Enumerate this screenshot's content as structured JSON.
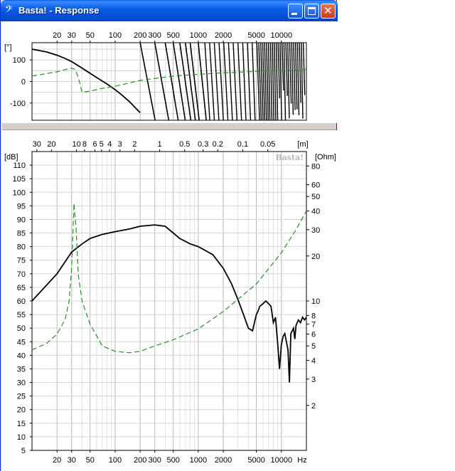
{
  "window": {
    "title": "Basta! - Response",
    "icon": "bass-clef-icon",
    "buttons": [
      "minimize",
      "maximize",
      "close"
    ],
    "title_color": "#ffffff",
    "titlebar_color": "#0b5fe5"
  },
  "chart_data": [
    {
      "type": "line",
      "name": "phase",
      "xscale": "log",
      "xlim": [
        10,
        20000
      ],
      "ylim": [
        -180,
        180
      ],
      "xticks": [
        "20",
        "30",
        "50",
        "100",
        "200",
        "300",
        "500",
        "1000",
        "2000",
        "5000",
        "10000"
      ],
      "xtick_values": [
        20,
        30,
        50,
        100,
        200,
        300,
        500,
        1000,
        2000,
        5000,
        10000
      ],
      "yunit": "[°]",
      "yticks": [
        "100",
        "0",
        "-100"
      ],
      "ytick_values": [
        100,
        0,
        -100
      ],
      "grid": true,
      "series": [
        {
          "style": "solid",
          "color": "#000000",
          "note_points": "unwrapped phase",
          "x": [
            10,
            15,
            20,
            25,
            30,
            40,
            50,
            60,
            80,
            100,
            120,
            150,
            200
          ],
          "y": [
            150,
            137,
            122,
            107,
            92,
            62,
            38,
            18,
            -12,
            -38,
            -62,
            -95,
            -145
          ],
          "wrapped_branch": {
            "x": [
              200,
              300,
              400,
              500,
              600,
              700,
              800,
              1000
            ],
            "start_y": [
              180,
              180,
              180,
              180,
              180,
              180,
              180,
              180
            ]
          }
        },
        {
          "style": "dashed",
          "color": "#2e8b2e",
          "x": [
            10,
            20,
            25,
            30,
            33,
            36,
            40,
            50,
            70,
            100,
            200,
            500,
            1000,
            2000,
            5000,
            10000,
            20000
          ],
          "y": [
            25,
            45,
            55,
            62,
            55,
            20,
            -50,
            -45,
            -32,
            -22,
            5,
            25,
            33,
            40,
            47,
            52,
            57
          ]
        }
      ]
    },
    {
      "type": "line",
      "name": "response",
      "xscale": "log",
      "xlim": [
        10,
        20000
      ],
      "ylim": [
        5,
        115
      ],
      "xticks": [
        "20",
        "30",
        "50",
        "100",
        "200",
        "300",
        "500",
        "1000",
        "2000",
        "5000",
        "10000"
      ],
      "xtick_values": [
        20,
        30,
        50,
        100,
        200,
        300,
        500,
        1000,
        2000,
        5000,
        10000
      ],
      "x_unit": "Hz",
      "ylabel_left": "[dB]",
      "yticks_left": [
        "110",
        "105",
        "100",
        "95",
        "90",
        "85",
        "80",
        "75",
        "70",
        "65",
        "60",
        "55",
        "50",
        "45",
        "40",
        "35",
        "30",
        "25",
        "20",
        "15",
        "10",
        "5"
      ],
      "ytick_values_left": [
        110,
        105,
        100,
        95,
        90,
        85,
        80,
        75,
        70,
        65,
        60,
        55,
        50,
        45,
        40,
        35,
        30,
        25,
        20,
        15,
        10,
        5
      ],
      "ylabel_right": "[Ohm]",
      "yticks_right": [
        "80",
        "60",
        "50",
        "40",
        "30",
        "20",
        "10",
        "8",
        "7",
        "6",
        "5",
        "4",
        "3",
        "2"
      ],
      "ytick_values_right": [
        80,
        60,
        50,
        40,
        30,
        20,
        10,
        8,
        7,
        6,
        5,
        4,
        3,
        2
      ],
      "yscale_right": "log",
      "ylim_right": [
        1,
        100
      ],
      "top_axis_unit": "[m]",
      "top_ticks": [
        "30",
        "20",
        "10",
        "8",
        "6",
        "5",
        "4",
        "3",
        "2",
        "1",
        "0.5",
        "0.3",
        "0.2",
        "0.1",
        "0.05"
      ],
      "top_tick_values": [
        30,
        20,
        10,
        8,
        6,
        5,
        4,
        3,
        2,
        1,
        0.5,
        0.3,
        0.2,
        0.1,
        0.05
      ],
      "logo": "Basta!",
      "grid": true,
      "series": [
        {
          "style": "solid",
          "color": "#000000",
          "axis": "left",
          "x": [
            10,
            20,
            30,
            40,
            50,
            70,
            100,
            150,
            200,
            300,
            400,
            500,
            600,
            800,
            1000,
            1500,
            2000,
            2500,
            3000,
            3500,
            4000,
            4500,
            5000,
            5200,
            5500,
            6000,
            6500,
            7000,
            7500,
            8000,
            8500,
            9000,
            9500,
            10000,
            10500,
            11000,
            12000,
            12500,
            13000,
            14000,
            14500,
            15000,
            16000,
            17000,
            18000,
            19000,
            20000
          ],
          "y": [
            60,
            70,
            78,
            81,
            83,
            84.5,
            85.5,
            86.5,
            87.5,
            88,
            87.5,
            85,
            83,
            81,
            80,
            77,
            72,
            66.5,
            60.5,
            55,
            50,
            49,
            55,
            56,
            58,
            59,
            60,
            59,
            58,
            52,
            54,
            45,
            35,
            44,
            47,
            48,
            42,
            30,
            48,
            50,
            46,
            51,
            53,
            52,
            54,
            53,
            54
          ]
        },
        {
          "style": "dashed",
          "color": "#2e8b2e",
          "axis": "right",
          "x": [
            10,
            15,
            20,
            25,
            28,
            30,
            32,
            34,
            36,
            40,
            50,
            70,
            100,
            150,
            200,
            300,
            500,
            1000,
            2000,
            5000,
            10000,
            15000,
            20000
          ],
          "y": [
            4.7,
            5.2,
            6.0,
            7.5,
            10,
            17,
            45,
            30,
            15,
            10,
            7,
            5,
            4.6,
            4.5,
            4.6,
            5,
            5.5,
            6.5,
            8.5,
            13,
            21,
            30,
            40
          ]
        }
      ]
    }
  ]
}
